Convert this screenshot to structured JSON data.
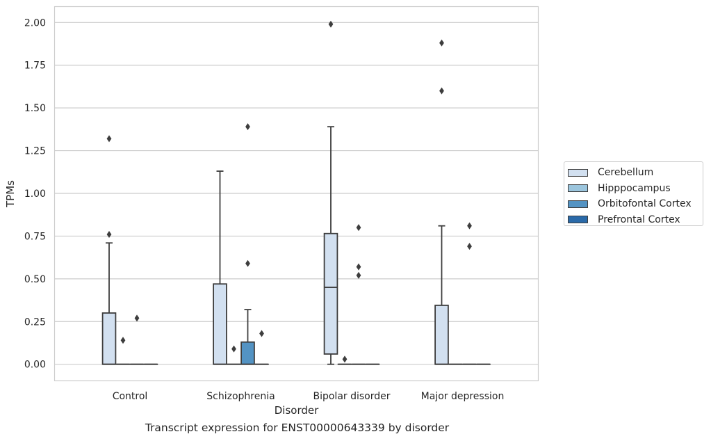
{
  "caption": "Transcript expression for ENST00000643339 by disorder",
  "legend": {
    "items": [
      {
        "label": "Cerebellum",
        "color": "#d2e0f0"
      },
      {
        "label": "Hipppocampus",
        "color": "#9bc5dd"
      },
      {
        "label": "Orbitofontal Cortex",
        "color": "#5393c3"
      },
      {
        "label": "Prefrontal Cortex",
        "color": "#2a6aa9"
      }
    ]
  },
  "chart_data": {
    "type": "box",
    "xlabel": "Disorder",
    "ylabel": "TPMs",
    "ylim": [
      -0.1,
      2.1
    ],
    "yticks": [
      "0.00",
      "0.25",
      "0.50",
      "0.75",
      "1.00",
      "1.25",
      "1.50",
      "1.75",
      "2.00"
    ],
    "grid": true,
    "legend_position": "right",
    "categories": [
      "Control",
      "Schizophrenia",
      "Bipolar disorder",
      "Major depression"
    ],
    "series": [
      {
        "name": "Cerebellum",
        "color": "#d2e0f0",
        "boxes": [
          {
            "q1": 0,
            "median": 0,
            "q3": 0.3,
            "whisker_low": 0,
            "whisker_high": 0.71,
            "outliers": [
              0.76,
              1.32
            ]
          },
          {
            "q1": 0,
            "median": 0,
            "q3": 0.47,
            "whisker_low": 0,
            "whisker_high": 1.13,
            "outliers": []
          },
          {
            "q1": 0.06,
            "median": 0.45,
            "q3": 0.765,
            "whisker_low": 0,
            "whisker_high": 1.39,
            "outliers": [
              1.99
            ]
          },
          {
            "q1": 0,
            "median": 0,
            "q3": 0.345,
            "whisker_low": 0,
            "whisker_high": 0.81,
            "outliers": [
              1.6,
              1.88
            ]
          }
        ]
      },
      {
        "name": "Hipppocampus",
        "color": "#9bc5dd",
        "boxes": [
          {
            "q1": 0,
            "median": 0,
            "q3": 0,
            "whisker_low": 0,
            "whisker_high": 0,
            "outliers": [
              0.14
            ]
          },
          {
            "q1": 0,
            "median": 0,
            "q3": 0,
            "whisker_low": 0,
            "whisker_high": 0,
            "outliers": [
              0.09
            ]
          },
          {
            "q1": 0,
            "median": 0,
            "q3": 0,
            "whisker_low": 0,
            "whisker_high": 0,
            "outliers": [
              0.03
            ]
          },
          {
            "q1": 0,
            "median": 0,
            "q3": 0,
            "whisker_low": 0,
            "whisker_high": 0,
            "outliers": []
          }
        ]
      },
      {
        "name": "Orbitofontal Cortex",
        "color": "#5393c3",
        "boxes": [
          {
            "q1": 0,
            "median": 0,
            "q3": 0,
            "whisker_low": 0,
            "whisker_high": 0,
            "outliers": [
              0.27
            ]
          },
          {
            "q1": 0,
            "median": 0,
            "q3": 0.13,
            "whisker_low": 0,
            "whisker_high": 0.32,
            "outliers": [
              0.59,
              1.39
            ]
          },
          {
            "q1": 0,
            "median": 0,
            "q3": 0,
            "whisker_low": 0,
            "whisker_high": 0,
            "outliers": [
              0.52,
              0.57,
              0.8
            ]
          },
          {
            "q1": 0,
            "median": 0,
            "q3": 0,
            "whisker_low": 0,
            "whisker_high": 0,
            "outliers": [
              0.69,
              0.81
            ]
          }
        ]
      },
      {
        "name": "Prefrontal Cortex",
        "color": "#2a6aa9",
        "boxes": [
          {
            "q1": 0,
            "median": 0,
            "q3": 0,
            "whisker_low": 0,
            "whisker_high": 0,
            "outliers": []
          },
          {
            "q1": 0,
            "median": 0,
            "q3": 0,
            "whisker_low": 0,
            "whisker_high": 0,
            "outliers": [
              0.18
            ]
          },
          {
            "q1": 0,
            "median": 0,
            "q3": 0,
            "whisker_low": 0,
            "whisker_high": 0,
            "outliers": []
          },
          {
            "q1": 0,
            "median": 0,
            "q3": 0,
            "whisker_low": 0,
            "whisker_high": 0,
            "outliers": []
          }
        ]
      }
    ]
  }
}
